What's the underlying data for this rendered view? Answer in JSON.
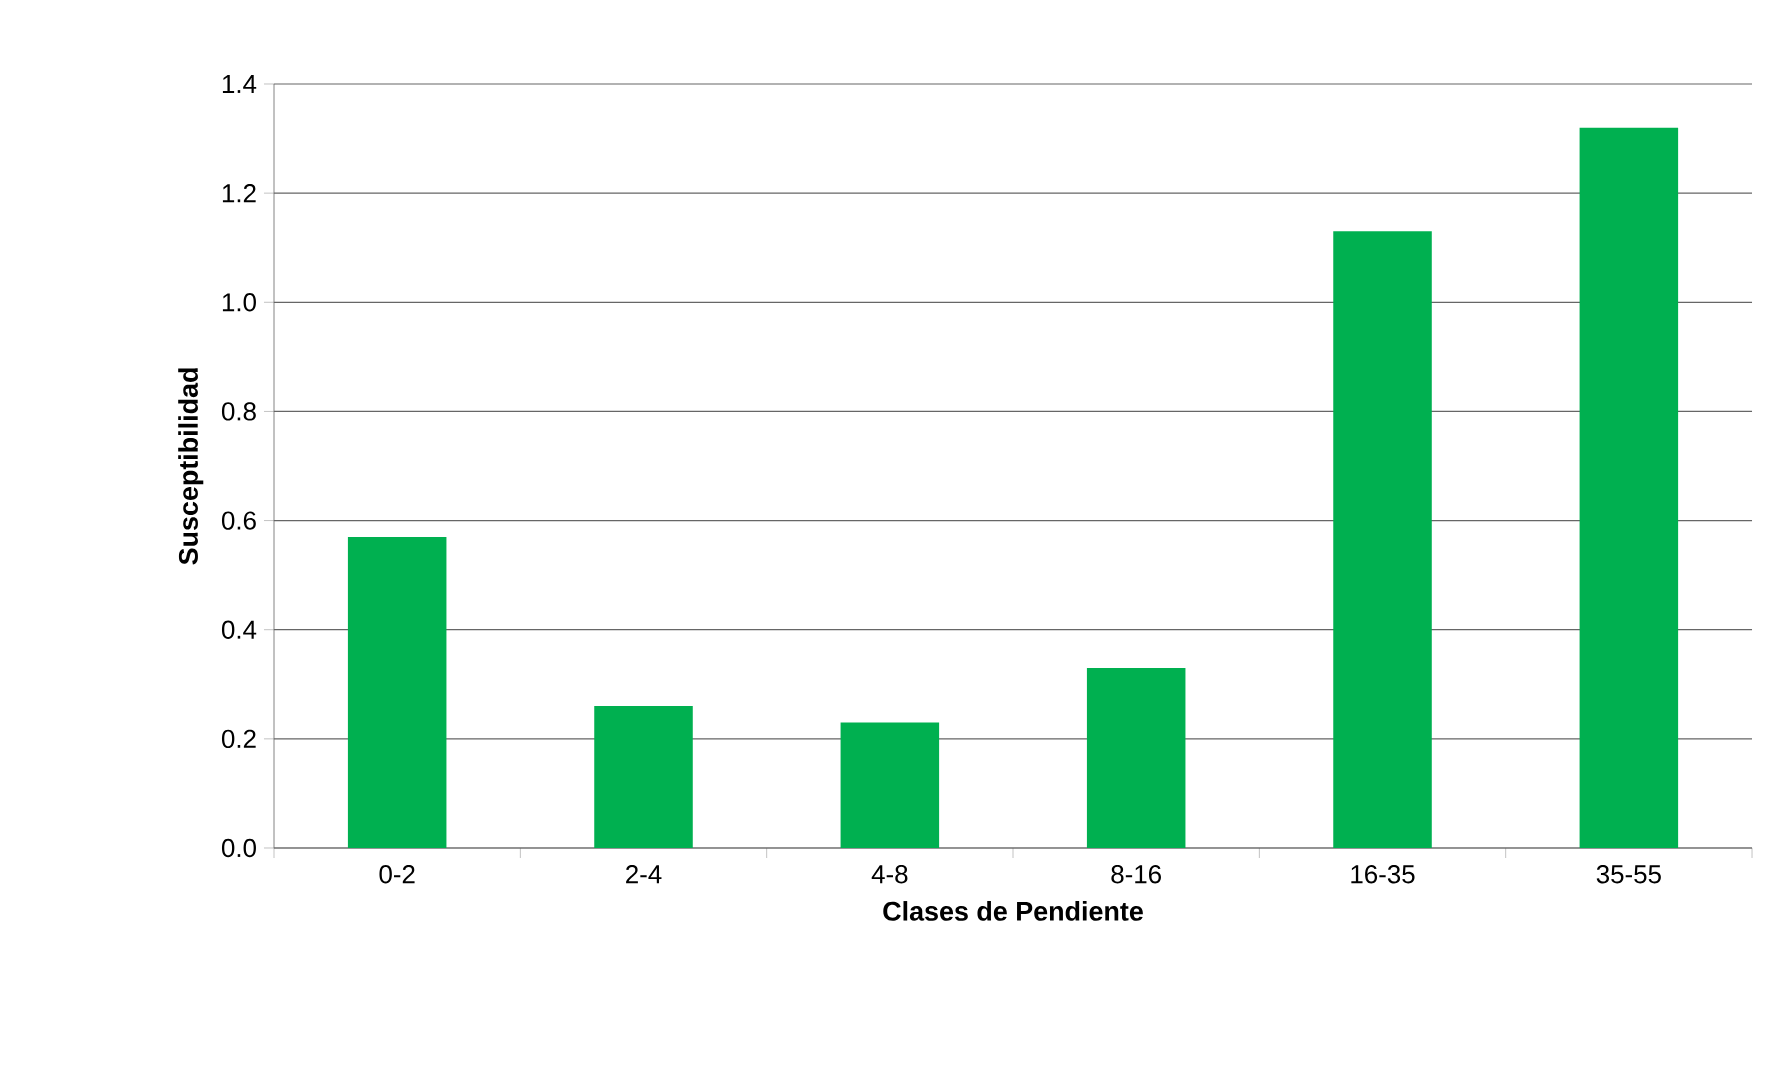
{
  "chart_data": {
    "type": "bar",
    "xlabel": "Clases de Pendiente",
    "ylabel": "Susceptibilidad",
    "categories": [
      "0-2",
      "2-4",
      "4-8",
      "8-16",
      "16-35",
      "35-55"
    ],
    "values": [
      0.57,
      0.26,
      0.23,
      0.33,
      1.13,
      1.32
    ],
    "color": "#00b050",
    "ylim": [
      0,
      1.4
    ],
    "yticks": [
      {
        "value": 0,
        "label": "0.0"
      },
      {
        "value": 0.2,
        "label": "0.2"
      },
      {
        "value": 0.4,
        "label": "0.4"
      },
      {
        "value": 0.6,
        "label": "0.6"
      },
      {
        "value": 0.8,
        "label": "0.8"
      },
      {
        "value": 1.0,
        "label": "1.0"
      },
      {
        "value": 1.2,
        "label": "1.2"
      },
      {
        "value": 1.4,
        "label": "1.4"
      }
    ],
    "grid": "y"
  }
}
